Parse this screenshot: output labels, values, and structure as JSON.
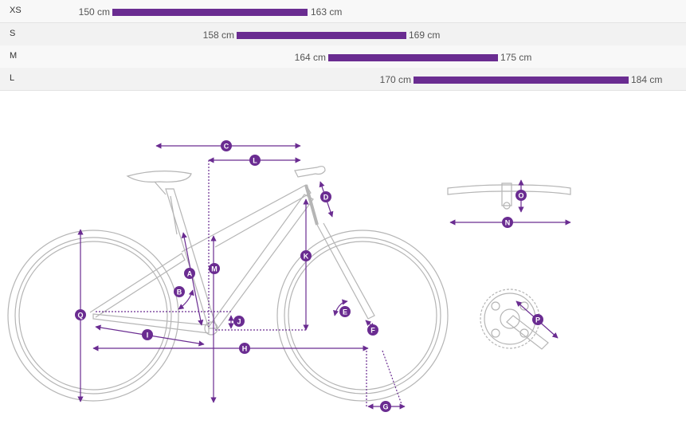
{
  "colors": {
    "accent": "#6a2c91",
    "frame_line": "#b5b5b5",
    "row_bg": "#f8f8f8"
  },
  "sizes": [
    {
      "label": "XS",
      "min": "150 cm",
      "max": "163 cm"
    },
    {
      "label": "S",
      "min": "158 cm",
      "max": "169 cm"
    },
    {
      "label": "M",
      "min": "164 cm",
      "max": "175 cm"
    },
    {
      "label": "L",
      "min": "170 cm",
      "max": "184 cm"
    }
  ],
  "geometry_labels": [
    "A",
    "B",
    "C",
    "D",
    "E",
    "F",
    "G",
    "H",
    "I",
    "J",
    "K",
    "L",
    "M",
    "N",
    "O",
    "P",
    "Q"
  ]
}
